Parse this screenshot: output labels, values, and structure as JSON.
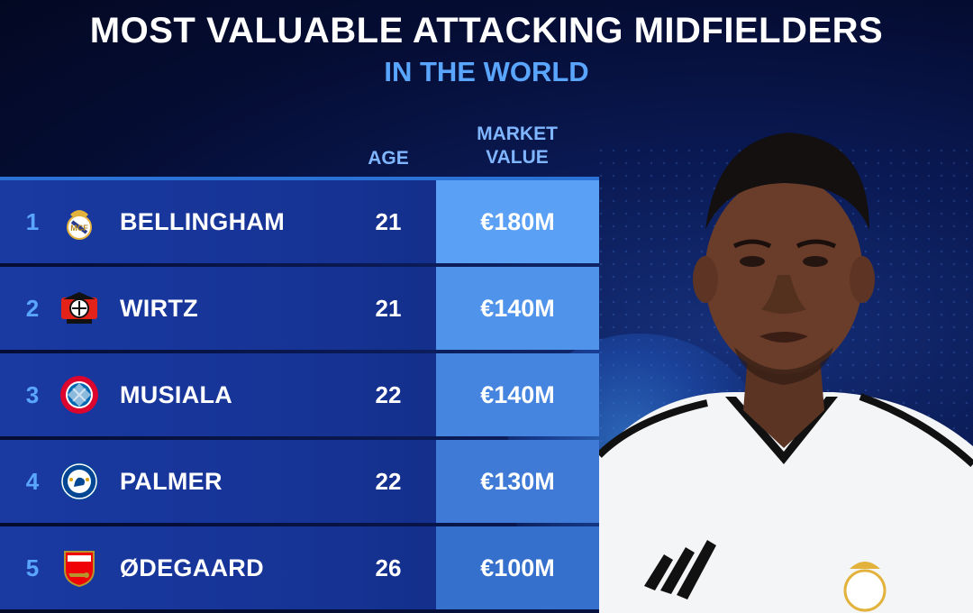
{
  "title": "MOST VALUABLE ATTACKING MIDFIELDERS",
  "subtitle": "IN THE WORLD",
  "headers": {
    "age": "AGE",
    "market_value_line1": "MARKET",
    "market_value_line2": "VALUE"
  },
  "rows": [
    {
      "rank": "1",
      "name": "BELLINGHAM",
      "age": "21",
      "value": "€180M",
      "club_icon": "real-madrid-crest-icon"
    },
    {
      "rank": "2",
      "name": "WIRTZ",
      "age": "21",
      "value": "€140M",
      "club_icon": "bayer-leverkusen-crest-icon"
    },
    {
      "rank": "3",
      "name": "MUSIALA",
      "age": "22",
      "value": "€140M",
      "club_icon": "bayern-munich-crest-icon"
    },
    {
      "rank": "4",
      "name": "PALMER",
      "age": "22",
      "value": "€130M",
      "club_icon": "chelsea-crest-icon"
    },
    {
      "rank": "5",
      "name": "ØDEGAARD",
      "age": "26",
      "value": "€100M",
      "club_icon": "arsenal-crest-icon"
    }
  ],
  "colors": {
    "accent": "#5aa6ff",
    "row_bg": "#1a3aa2",
    "value_bg": "#5aa0f5"
  }
}
